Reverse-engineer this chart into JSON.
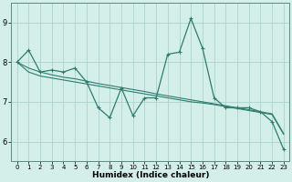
{
  "x": [
    0,
    1,
    2,
    3,
    4,
    5,
    6,
    7,
    8,
    9,
    10,
    11,
    12,
    13,
    14,
    15,
    16,
    17,
    18,
    19,
    20,
    21,
    22,
    23
  ],
  "y_main": [
    8.0,
    8.3,
    7.75,
    7.8,
    7.75,
    7.85,
    7.5,
    6.85,
    6.6,
    7.35,
    6.65,
    7.1,
    7.1,
    8.2,
    8.25,
    9.1,
    8.35,
    7.1,
    6.85,
    6.85,
    6.85,
    6.75,
    6.5,
    5.8
  ],
  "y_trend1": [
    8.0,
    7.75,
    7.65,
    7.6,
    7.55,
    7.5,
    7.45,
    7.4,
    7.35,
    7.3,
    7.25,
    7.2,
    7.15,
    7.1,
    7.05,
    7.0,
    6.97,
    6.93,
    6.88,
    6.83,
    6.78,
    6.73,
    6.68,
    6.18
  ],
  "y_trend2": [
    8.0,
    7.85,
    7.75,
    7.68,
    7.62,
    7.58,
    7.52,
    7.46,
    7.41,
    7.36,
    7.31,
    7.26,
    7.2,
    7.15,
    7.1,
    7.05,
    7.0,
    6.95,
    6.9,
    6.85,
    6.8,
    6.75,
    6.7,
    6.2
  ],
  "line_color": "#2e7d6e",
  "bg_color": "#d4eee9",
  "grid_color": "#aad4cc",
  "xlabel": "Humidex (Indice chaleur)",
  "ylim": [
    5.5,
    9.5
  ],
  "xlim": [
    -0.5,
    23.5
  ],
  "yticks": [
    6,
    7,
    8,
    9
  ],
  "xticks": [
    0,
    1,
    2,
    3,
    4,
    5,
    6,
    7,
    8,
    9,
    10,
    11,
    12,
    13,
    14,
    15,
    16,
    17,
    18,
    19,
    20,
    21,
    22,
    23
  ]
}
